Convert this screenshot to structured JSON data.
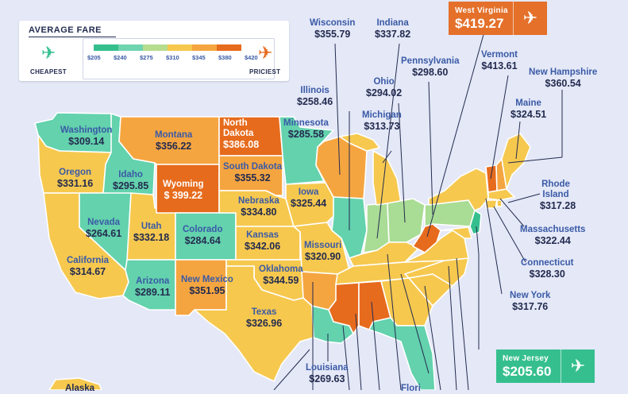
{
  "legend": {
    "title": "AVERAGE FARE",
    "ticks": [
      "$205",
      "$240",
      "$275",
      "$310",
      "$345",
      "$380",
      "$420"
    ],
    "cheapest_label": "CHEAPEST",
    "priciest_label": "PRICIEST",
    "scale_colors": [
      "#35bf8f",
      "#6fd4b0",
      "#b6dc8e",
      "#f6c84e",
      "#f5a540",
      "#e66b1d"
    ]
  },
  "colors": {
    "background": "#e4e8f7",
    "teal": "#63d2ad",
    "light_green": "#a9dc94",
    "yellow": "#f6c84e",
    "light_orange": "#f5a540",
    "orange": "#e66b1d",
    "callout_orange": "#e4702a",
    "callout_green": "#35bf8f",
    "name_text": "#3a5aa6",
    "value_text": "#232b4f"
  },
  "states": [
    {
      "name": "Washington",
      "fare": "$309.14"
    },
    {
      "name": "Oregon",
      "fare": "$331.16"
    },
    {
      "name": "California",
      "fare": "$314.67"
    },
    {
      "name": "Idaho",
      "fare": "$295.85"
    },
    {
      "name": "Nevada",
      "fare": "$264.61"
    },
    {
      "name": "Utah",
      "fare": "$332.18"
    },
    {
      "name": "Arizona",
      "fare": "$289.11"
    },
    {
      "name": "Montana",
      "fare": "$356.22"
    },
    {
      "name": "Wyoming",
      "fare": "$ 399.22"
    },
    {
      "name": "Colorado",
      "fare": "$284.64"
    },
    {
      "name": "New Mexico",
      "fare": "$351.95"
    },
    {
      "name": "North Dakota",
      "fare": "$386.08"
    },
    {
      "name": "South Dakota",
      "fare": "$355.32"
    },
    {
      "name": "Nebraska",
      "fare": "$334.80"
    },
    {
      "name": "Kansas",
      "fare": "$342.06"
    },
    {
      "name": "Oklahoma",
      "fare": "$344.59"
    },
    {
      "name": "Texas",
      "fare": "$326.96"
    },
    {
      "name": "Minnesota",
      "fare": "$285.58"
    },
    {
      "name": "Iowa",
      "fare": "$325.44"
    },
    {
      "name": "Missouri",
      "fare": "$320.90"
    },
    {
      "name": "Louisiana",
      "fare": "$269.63"
    },
    {
      "name": "Illinois",
      "fare": "$258.46"
    },
    {
      "name": "Wisconsin",
      "fare": "$355.79"
    },
    {
      "name": "Indiana",
      "fare": "$337.82"
    },
    {
      "name": "Michigan",
      "fare": "$313.73"
    },
    {
      "name": "Ohio",
      "fare": "$294.02"
    },
    {
      "name": "Pennsylvania",
      "fare": "$298.60"
    },
    {
      "name": "West Virginia",
      "fare": "$419.27"
    },
    {
      "name": "Vermont",
      "fare": "$413.61"
    },
    {
      "name": "New Hampshire",
      "fare": "$360.54"
    },
    {
      "name": "Maine",
      "fare": "$324.51"
    },
    {
      "name": "Rhode Island",
      "fare": "$317.28"
    },
    {
      "name": "Massachusetts",
      "fare": "$322.44"
    },
    {
      "name": "Connecticut",
      "fare": "$328.30"
    },
    {
      "name": "New York",
      "fare": "$317.76"
    },
    {
      "name": "New Jersey",
      "fare": "$205.60"
    }
  ],
  "partial_labels": {
    "alaska": "Alaska",
    "florida": "Flori"
  },
  "icons": {
    "legend_cheapest": "airplane-icon",
    "legend_priciest": "airplane-icon",
    "callout": "airplane-icon"
  }
}
